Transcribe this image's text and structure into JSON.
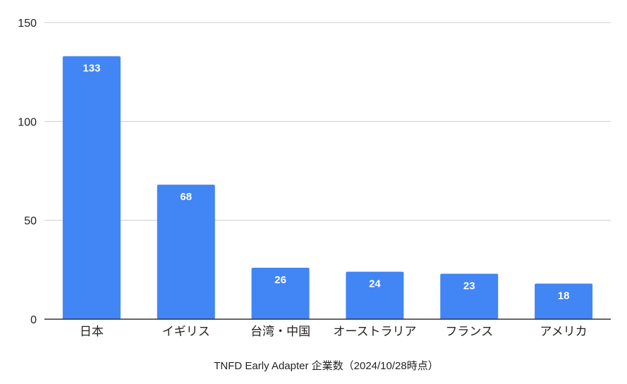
{
  "chart_data": {
    "type": "bar",
    "categories": [
      "日本",
      "イギリス",
      "台湾・中国",
      "オーストラリア",
      "フランス",
      "アメリカ"
    ],
    "values": [
      133,
      68,
      26,
      24,
      23,
      18
    ],
    "data_labels": [
      "133",
      "68",
      "26",
      "24",
      "23",
      "18"
    ],
    "title": "",
    "xlabel": "TNFD Early Adapter 企業数（2024/10/28時点）",
    "ylabel": "",
    "ylim": [
      0,
      150
    ],
    "yticks": [
      0,
      50,
      100,
      150
    ],
    "grid": true,
    "legend": "none",
    "colors": {
      "bar": "#4285f4",
      "grid": "#cccccc",
      "axis": "#333333",
      "text": "#222222",
      "label": "#ffffff"
    }
  }
}
